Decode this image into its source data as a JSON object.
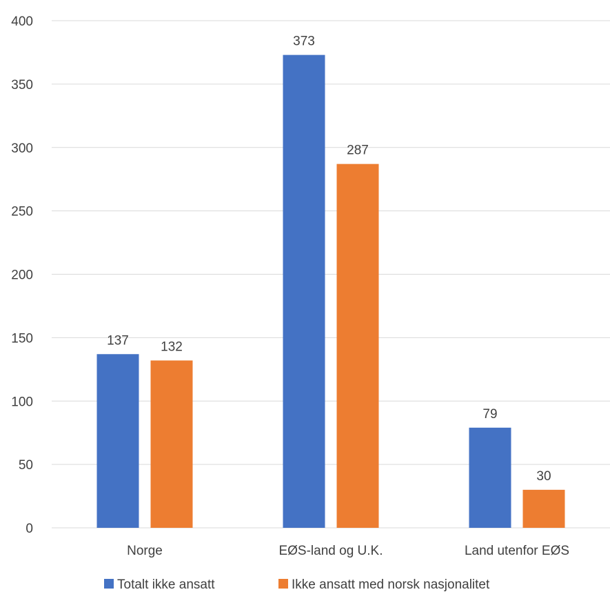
{
  "chart_data": {
    "type": "bar",
    "categories": [
      "Norge",
      "EØS-land og U.K.",
      "Land utenfor EØS"
    ],
    "series": [
      {
        "name": "Totalt ikke ansatt",
        "color": "#4472c4",
        "values": [
          137,
          373,
          79
        ]
      },
      {
        "name": "Ikke ansatt med norsk nasjonalitet",
        "color": "#ed7d31",
        "values": [
          132,
          287,
          30
        ]
      }
    ],
    "yticks": [
      0,
      50,
      100,
      150,
      200,
      250,
      300,
      350,
      400
    ],
    "ylim": [
      0,
      400
    ],
    "grid": true,
    "legend_position": "bottom",
    "data_labels": true,
    "title": "",
    "xlabel": "",
    "ylabel": ""
  },
  "colors": {
    "grid": "#d9d9d9",
    "text": "#404040"
  }
}
